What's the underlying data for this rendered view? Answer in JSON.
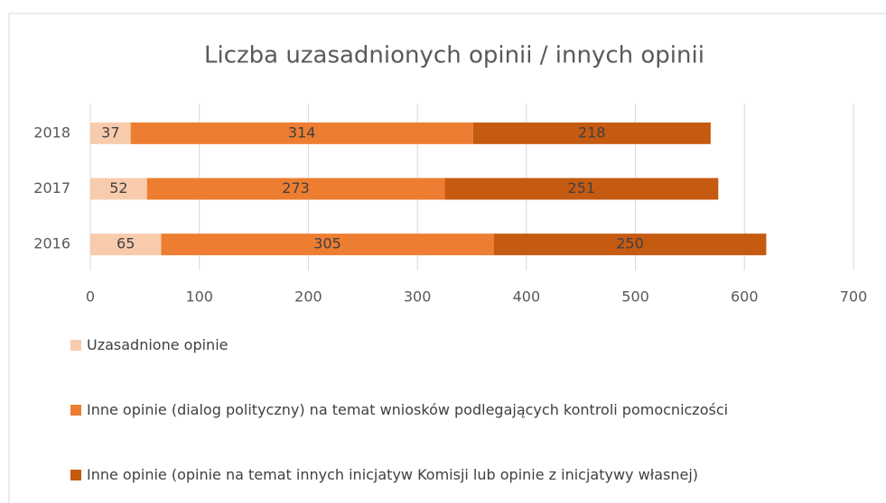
{
  "chart_data": {
    "type": "stacked-bar-horizontal",
    "title": "Liczba uzasadnionych opinii / innych opinii",
    "categories": [
      "2018",
      "2017",
      "2016"
    ],
    "series": [
      {
        "name": "Uzasadnione opinie",
        "color": "#f8cbad",
        "values": [
          37,
          52,
          65
        ]
      },
      {
        "name": "Inne opinie (dialog polityczny) na temat wniosków podlegających kontroli pomocniczości",
        "color": "#ed7d31",
        "values": [
          314,
          273,
          305
        ]
      },
      {
        "name": "Inne opinie (opinie na temat innych inicjatyw Komisji lub opinie z inicjatywy własnej)",
        "color": "#c55a11",
        "values": [
          218,
          251,
          250
        ]
      }
    ],
    "xlim": [
      0,
      700
    ],
    "xticks": [
      0,
      100,
      200,
      300,
      400,
      500,
      600,
      700
    ],
    "grid": true,
    "legend": "bottom"
  }
}
